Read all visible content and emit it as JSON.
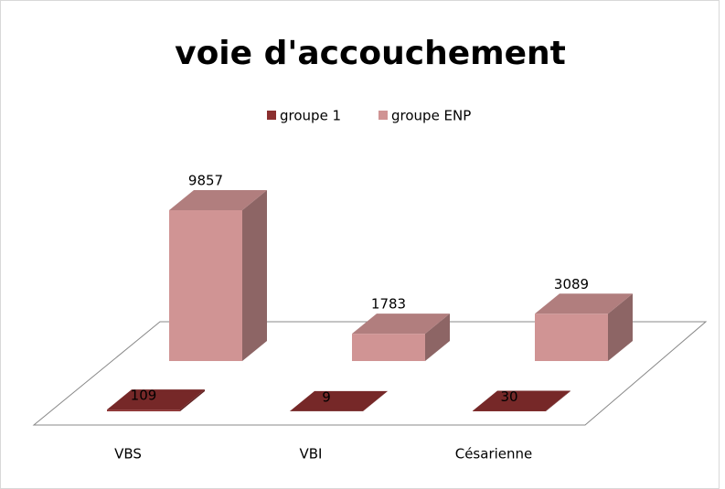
{
  "chart_data": {
    "type": "bar3d",
    "title": "voie d'accouchement",
    "categories": [
      "VBS",
      "VBI",
      "Césarienne"
    ],
    "series": [
      {
        "name": "groupe 1",
        "color": "#8b2f2f",
        "values": [
          109,
          9,
          30
        ]
      },
      {
        "name": "groupe ENP",
        "color": "#d09494",
        "values": [
          9857,
          1783,
          3089
        ]
      }
    ],
    "legend": "top"
  }
}
